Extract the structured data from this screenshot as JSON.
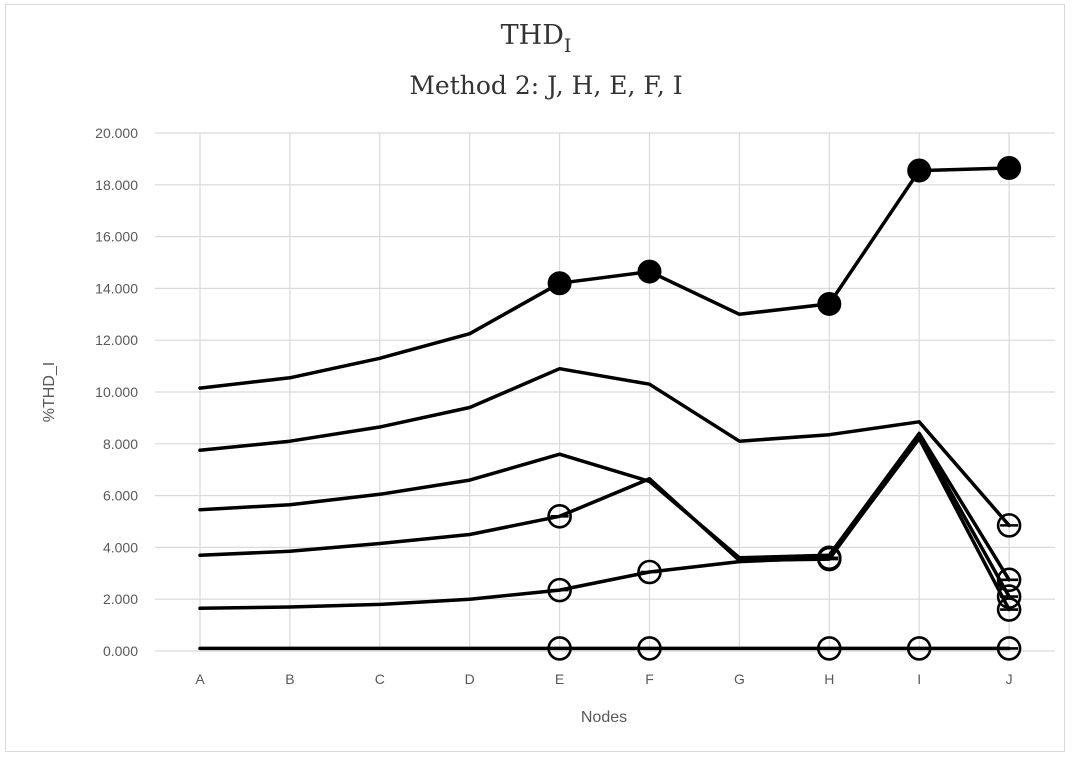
{
  "chart_data": {
    "type": "line",
    "title_main": "THD",
    "title_sub_index": "I",
    "subtitle": "Method 2: J, H, E, F, I",
    "xlabel": "Nodes",
    "ylabel": "%THD_I",
    "ylim": [
      0,
      20
    ],
    "yticks": [
      "0.000",
      "2.000",
      "4.000",
      "6.000",
      "8.000",
      "10.000",
      "12.000",
      "14.000",
      "16.000",
      "18.000",
      "20.000"
    ],
    "categories": [
      "A",
      "B",
      "C",
      "D",
      "E",
      "F",
      "G",
      "H",
      "I",
      "J"
    ],
    "grid": "horizontal and vertical",
    "line_color": "#000000",
    "grid_color": "#d9d9d9",
    "series": [
      {
        "values": [
          10.15,
          10.55,
          11.3,
          12.25,
          14.2,
          14.65,
          13.0,
          13.4,
          18.55,
          18.65
        ],
        "marker": "filled-circle",
        "marker_at": [
          "E",
          "F",
          "H",
          "I",
          "J"
        ]
      },
      {
        "values": [
          7.75,
          8.1,
          8.65,
          9.4,
          10.9,
          10.3,
          8.1,
          8.35,
          8.85,
          4.85
        ],
        "marker": "open-circle",
        "marker_at": [
          "J"
        ]
      },
      {
        "values": [
          5.45,
          5.65,
          6.05,
          6.6,
          7.6,
          6.55,
          3.6,
          3.7,
          8.4,
          2.75
        ],
        "marker": "open-circle",
        "marker_at": [
          "J"
        ]
      },
      {
        "values": [
          3.7,
          3.85,
          4.15,
          4.5,
          5.2,
          6.65,
          3.5,
          3.55,
          8.3,
          2.1
        ],
        "marker": "open-circle",
        "marker_at": [
          "E",
          "H",
          "J"
        ]
      },
      {
        "values": [
          1.65,
          1.7,
          1.8,
          2.0,
          2.35,
          3.05,
          3.45,
          3.6,
          8.2,
          1.6
        ],
        "marker": "open-circle",
        "marker_at": [
          "E",
          "F",
          "H",
          "J"
        ]
      },
      {
        "values": [
          0.1,
          0.1,
          0.1,
          0.1,
          0.1,
          0.1,
          0.1,
          0.1,
          0.1,
          0.1
        ],
        "marker": "open-circle",
        "marker_at": [
          "E",
          "F",
          "H",
          "I",
          "J"
        ]
      }
    ]
  }
}
